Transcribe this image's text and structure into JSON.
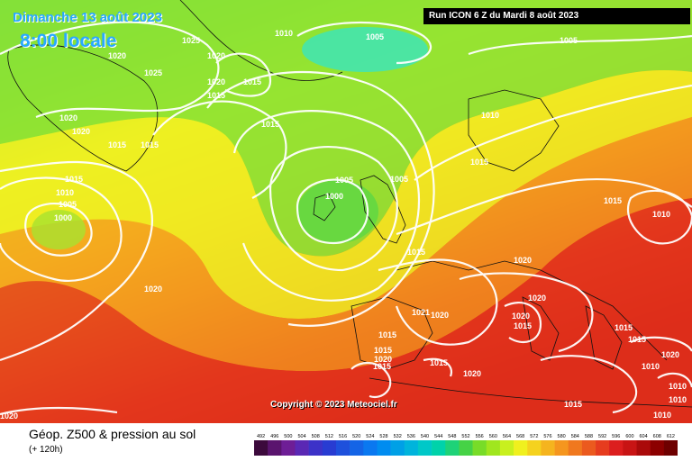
{
  "header": {
    "date": "Dimanche 13 août 2023",
    "time": "8:00 locale",
    "run": "Run ICON 6 Z du Mardi 8 août 2023"
  },
  "footer": {
    "title": "Géop. Z500 & pression au sol",
    "subtitle": "(+ 120h)",
    "copyright": "Copyright © 2023 Meteociel.fr"
  },
  "legend": {
    "values": [
      "492",
      "496",
      "500",
      "504",
      "508",
      "512",
      "516",
      "520",
      "524",
      "528",
      "532",
      "536",
      "540",
      "544",
      "548",
      "552",
      "556",
      "560",
      "564",
      "568",
      "572",
      "576",
      "580",
      "584",
      "588",
      "592",
      "596",
      "600",
      "604",
      "608",
      "612"
    ],
    "colors": [
      "#3c0a3c",
      "#5a146e",
      "#6e1e96",
      "#5a28b4",
      "#3c32c8",
      "#283cd2",
      "#1e50dc",
      "#1464e6",
      "#0a78f0",
      "#008cf0",
      "#00a0e6",
      "#00b4dc",
      "#00c8c8",
      "#00d2aa",
      "#1ed278",
      "#46d246",
      "#78dc28",
      "#a0e61e",
      "#c8f01e",
      "#f0f01e",
      "#f5d21e",
      "#f5b41e",
      "#f5961e",
      "#f0781e",
      "#eb5a1e",
      "#e63c1e",
      "#dc1e1e",
      "#c81414",
      "#aa0a0a",
      "#8c0000",
      "#6e0000"
    ]
  },
  "isobars": [
    {
      "label": "1025"
    },
    {
      "label": "1010"
    },
    {
      "label": "1005"
    },
    {
      "label": "1005"
    },
    {
      "label": "1020"
    },
    {
      "label": "1020"
    },
    {
      "label": "1025"
    },
    {
      "label": "1020"
    },
    {
      "label": "1015"
    },
    {
      "label": "1015"
    },
    {
      "label": "1015"
    },
    {
      "label": "1010"
    },
    {
      "label": "1020"
    },
    {
      "label": "1020"
    },
    {
      "label": "1015"
    },
    {
      "label": "1015"
    },
    {
      "label": "1015"
    },
    {
      "label": "1010"
    },
    {
      "label": "1005"
    },
    {
      "label": "1000"
    },
    {
      "label": "1005"
    },
    {
      "label": "1000"
    },
    {
      "label": "1005"
    },
    {
      "label": "1015"
    },
    {
      "label": "1015"
    },
    {
      "label": "1010"
    },
    {
      "label": "1015"
    },
    {
      "label": "1020"
    },
    {
      "label": "1020"
    },
    {
      "label": "1020"
    },
    {
      "label": "1021"
    },
    {
      "label": "1020"
    },
    {
      "label": "1020"
    },
    {
      "label": "1015"
    },
    {
      "label": "1015"
    },
    {
      "label": "1015"
    },
    {
      "label": "1015"
    },
    {
      "label": "1020"
    },
    {
      "label": "1020"
    },
    {
      "label": "1015"
    },
    {
      "label": "1020"
    },
    {
      "label": "1015"
    },
    {
      "label": "1015"
    },
    {
      "label": "1010"
    },
    {
      "label": "1015"
    },
    {
      "label": "1010"
    },
    {
      "label": "1010"
    },
    {
      "label": "1010"
    },
    {
      "label": "1020"
    }
  ]
}
